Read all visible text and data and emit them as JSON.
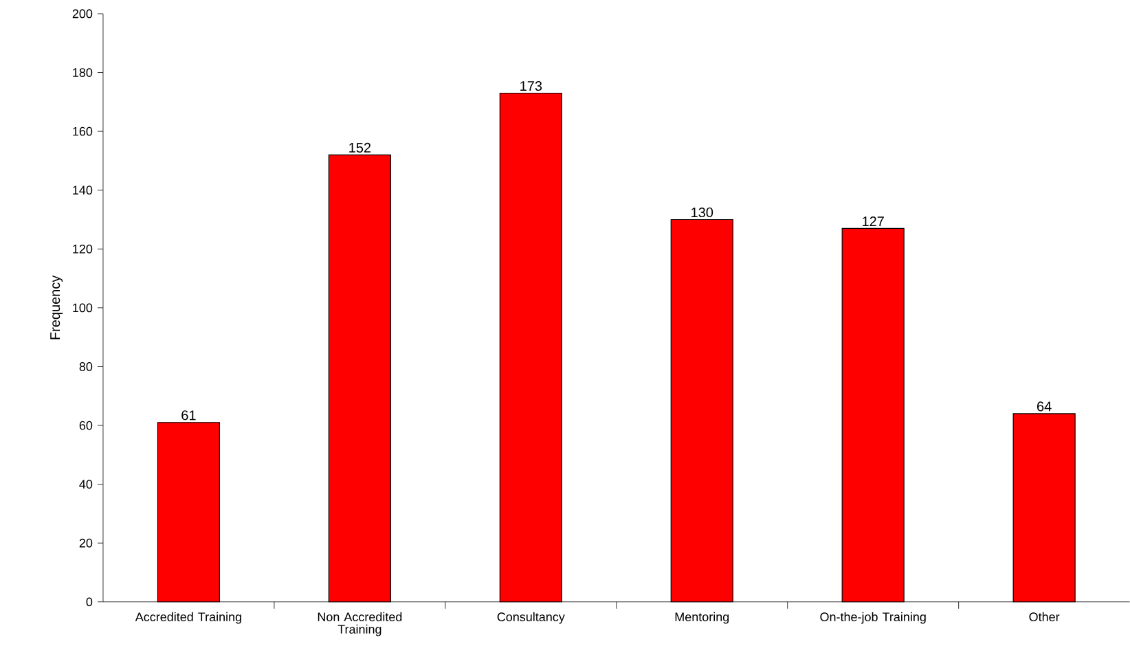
{
  "chart_data": {
    "type": "bar",
    "categories": [
      "Accredited Training",
      "Non Accredited Training",
      "Consultancy",
      "Mentoring",
      "On-the-job Training",
      "Other"
    ],
    "values": [
      61,
      152,
      173,
      130,
      127,
      64
    ],
    "color": "#ff0000",
    "ylabel": "Frequency",
    "ylim": [
      0,
      200
    ],
    "yticks": [
      0,
      20,
      40,
      60,
      80,
      100,
      120,
      140,
      160,
      180,
      200
    ],
    "data_labels": true
  }
}
